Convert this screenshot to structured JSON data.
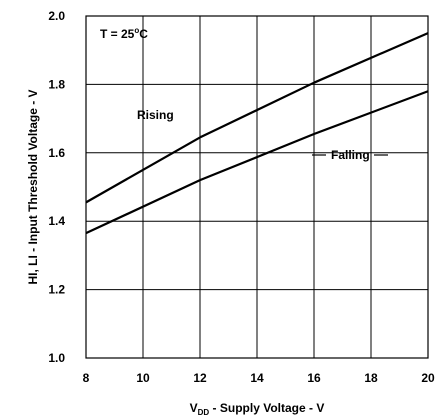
{
  "chart_data": {
    "type": "line",
    "xlabel_main": "V",
    "xlabel_sub": "DD",
    "xlabel_rest": " - Supply Voltage - V",
    "ylabel": "HI, LI - Input Threshold Voltage - V",
    "xlim": [
      8,
      20
    ],
    "ylim": [
      1.0,
      2.0
    ],
    "x_ticks": [
      "8",
      "10",
      "12",
      "14",
      "16",
      "18",
      "20"
    ],
    "y_ticks": [
      "1.0",
      "1.2",
      "1.4",
      "1.6",
      "1.8",
      "2.0"
    ],
    "grid": true,
    "annotation_main": "T = 25",
    "annotation_sup": "o",
    "annotation_rest": "C",
    "series": [
      {
        "name": "Rising",
        "x": [
          8,
          12,
          16,
          20
        ],
        "y": [
          1.455,
          1.645,
          1.805,
          1.95
        ]
      },
      {
        "name": "Falling",
        "x": [
          8,
          12,
          16,
          20
        ],
        "y": [
          1.365,
          1.52,
          1.655,
          1.78
        ]
      }
    ]
  }
}
